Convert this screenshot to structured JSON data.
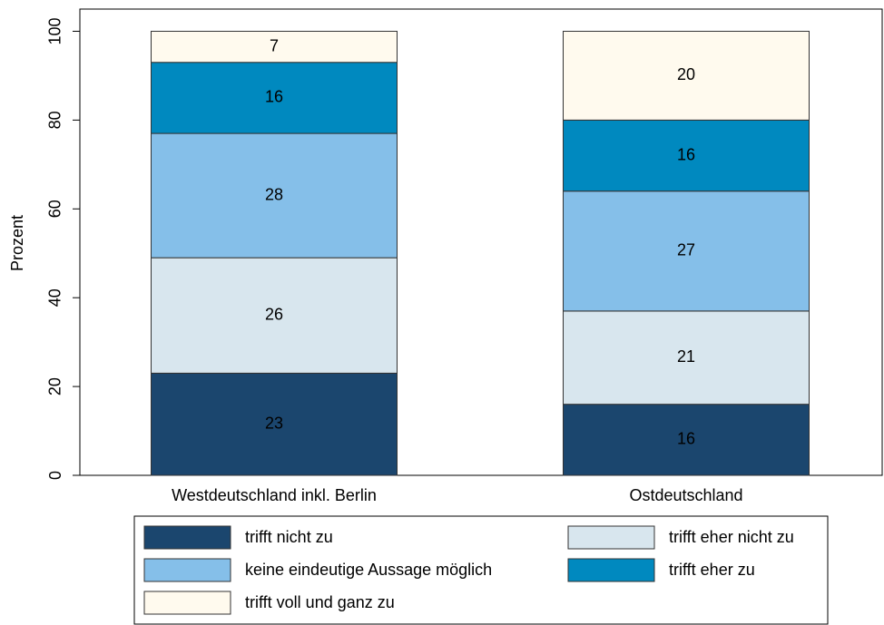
{
  "chart_data": {
    "type": "stacked_bar",
    "y_label": "Prozent",
    "categories": [
      "Westdeutschland inkl. Berlin",
      "Ostdeutschland"
    ],
    "series": [
      {
        "name": "trifft nicht zu",
        "color": "#1b466e",
        "values": [
          23,
          16
        ]
      },
      {
        "name": "trifft eher nicht zu",
        "color": "#d8e6ee",
        "values": [
          26,
          21
        ]
      },
      {
        "name": "keine eindeutige Aussage möglich",
        "color": "#85bfe9",
        "values": [
          28,
          27
        ]
      },
      {
        "name": "trifft eher zu",
        "color": "#0089bf",
        "values": [
          16,
          16
        ]
      },
      {
        "name": "trifft voll und ganz zu",
        "color": "#fffaee",
        "values": [
          7,
          20
        ]
      }
    ],
    "ylim": [
      0,
      105
    ],
    "yticks": [
      0,
      20,
      40,
      60,
      80,
      100
    ]
  }
}
